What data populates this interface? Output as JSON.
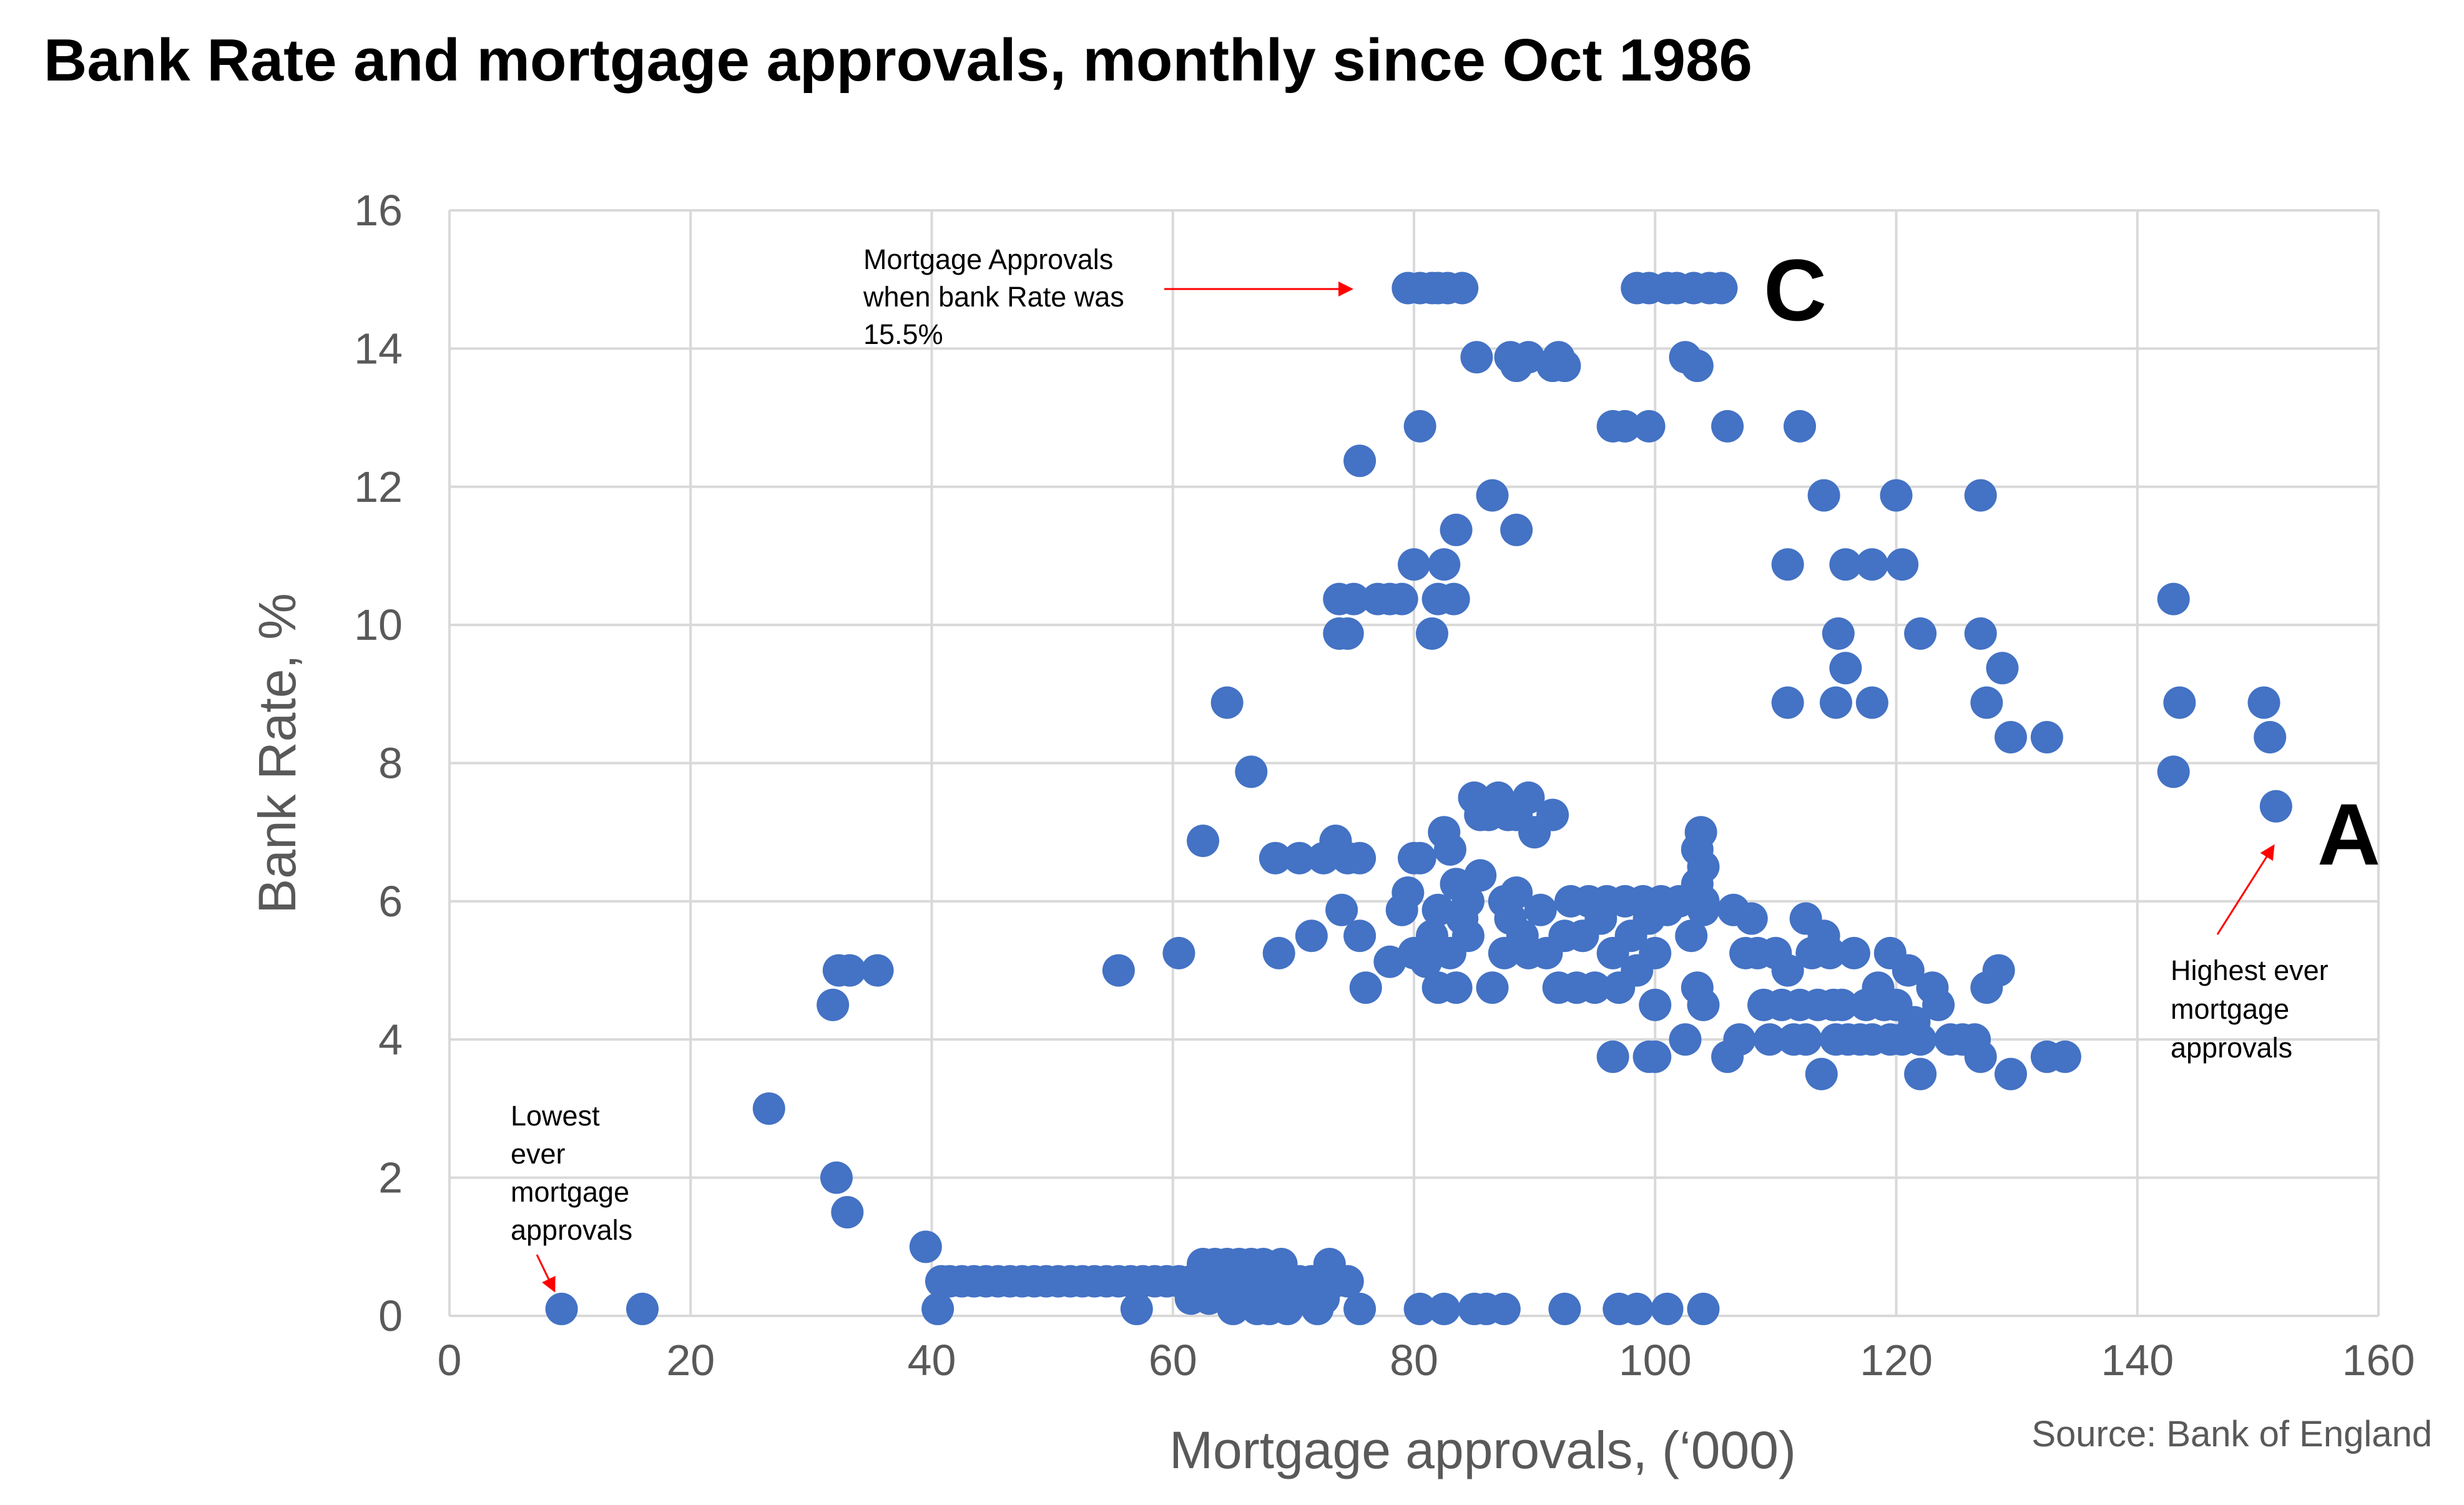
{
  "chart_data": {
    "type": "scatter",
    "title": "Bank Rate and mortgage approvals, monthly since Oct 1986",
    "xlabel": "Mortgage approvals, (‘000)",
    "ylabel": "Bank Rate, %",
    "xlim": [
      0,
      160
    ],
    "ylim": [
      0,
      16
    ],
    "x_ticks": [
      0,
      20,
      40,
      60,
      80,
      100,
      120,
      140,
      160
    ],
    "y_ticks": [
      0,
      2,
      4,
      6,
      8,
      10,
      12,
      14,
      16
    ],
    "grid": true,
    "point_color": "#4472C4",
    "points": [
      [
        9.3,
        0.1
      ],
      [
        16,
        0.1
      ],
      [
        26.5,
        3.0
      ],
      [
        31.8,
        4.5
      ],
      [
        32.3,
        5.0
      ],
      [
        33.2,
        5.0
      ],
      [
        35.5,
        5.0
      ],
      [
        32.1,
        2.0
      ],
      [
        33,
        1.5
      ],
      [
        39.5,
        1.0
      ],
      [
        40.5,
        0.1
      ],
      [
        40.8,
        0.5
      ],
      [
        41.5,
        0.5
      ],
      [
        42.5,
        0.5
      ],
      [
        43.5,
        0.5
      ],
      [
        44.5,
        0.5
      ],
      [
        45.5,
        0.5
      ],
      [
        46.5,
        0.5
      ],
      [
        47.5,
        0.5
      ],
      [
        48.5,
        0.5
      ],
      [
        49.5,
        0.5
      ],
      [
        50.5,
        0.5
      ],
      [
        51.5,
        0.5
      ],
      [
        52.5,
        0.5
      ],
      [
        53.5,
        0.5
      ],
      [
        54.5,
        0.5
      ],
      [
        55.5,
        0.5
      ],
      [
        56.5,
        0.5
      ],
      [
        57.5,
        0.5
      ],
      [
        58.5,
        0.5
      ],
      [
        59.5,
        0.5
      ],
      [
        60.5,
        0.5
      ],
      [
        61.5,
        0.5
      ],
      [
        62.5,
        0.5
      ],
      [
        63.5,
        0.5
      ],
      [
        64.5,
        0.5
      ],
      [
        65.5,
        0.5
      ],
      [
        66.5,
        0.5
      ],
      [
        67.5,
        0.5
      ],
      [
        68.5,
        0.5
      ],
      [
        69.5,
        0.5
      ],
      [
        70.5,
        0.5
      ],
      [
        71.5,
        0.5
      ],
      [
        72.5,
        0.5
      ],
      [
        73.5,
        0.5
      ],
      [
        74.5,
        0.5
      ],
      [
        62.5,
        0.75
      ],
      [
        63.5,
        0.75
      ],
      [
        64.5,
        0.75
      ],
      [
        65.5,
        0.75
      ],
      [
        66.5,
        0.75
      ],
      [
        67.5,
        0.75
      ],
      [
        69,
        0.75
      ],
      [
        73,
        0.75
      ],
      [
        61.5,
        0.25
      ],
      [
        63,
        0.25
      ],
      [
        64.5,
        0.25
      ],
      [
        66,
        0.25
      ],
      [
        68,
        0.25
      ],
      [
        70.5,
        0.25
      ],
      [
        72.5,
        0.25
      ],
      [
        57,
        0.1
      ],
      [
        65,
        0.1
      ],
      [
        67,
        0.1
      ],
      [
        68,
        0.1
      ],
      [
        69.5,
        0.1
      ],
      [
        72,
        0.1
      ],
      [
        75.5,
        0.1
      ],
      [
        80.5,
        0.1
      ],
      [
        82.5,
        0.1
      ],
      [
        85,
        0.1
      ],
      [
        86,
        0.1
      ],
      [
        87.5,
        0.1
      ],
      [
        92.5,
        0.1
      ],
      [
        97,
        0.1
      ],
      [
        98.5,
        0.1
      ],
      [
        101,
        0.1
      ],
      [
        104,
        0.1
      ],
      [
        55.5,
        5.0
      ],
      [
        60.5,
        5.25
      ],
      [
        62.5,
        6.875
      ],
      [
        64.5,
        8.875
      ],
      [
        66.5,
        7.875
      ],
      [
        68.5,
        6.625
      ],
      [
        70.5,
        6.625
      ],
      [
        68.8,
        5.25
      ],
      [
        71.5,
        5.5
      ],
      [
        72.5,
        6.625
      ],
      [
        73.5,
        6.875
      ],
      [
        74.5,
        6.625
      ],
      [
        75.5,
        6.625
      ],
      [
        74,
        5.875
      ],
      [
        75.5,
        5.5
      ],
      [
        76,
        4.75
      ],
      [
        75.5,
        12.375
      ],
      [
        73.8,
        10.375
      ],
      [
        75,
        10.375
      ],
      [
        77,
        10.375
      ],
      [
        78,
        10.375
      ],
      [
        79,
        10.375
      ],
      [
        73.8,
        9.875
      ],
      [
        74.5,
        9.875
      ],
      [
        80,
        10.875
      ],
      [
        80.5,
        12.875
      ],
      [
        79.5,
        14.875
      ],
      [
        80.5,
        14.875
      ],
      [
        81.5,
        14.875
      ],
      [
        82,
        14.875
      ],
      [
        82.8,
        14.875
      ],
      [
        84,
        14.875
      ],
      [
        81.5,
        9.875
      ],
      [
        82,
        10.375
      ],
      [
        82.5,
        10.875
      ],
      [
        83.3,
        10.375
      ],
      [
        83.5,
        11.375
      ],
      [
        85.2,
        13.875
      ],
      [
        86.5,
        11.875
      ],
      [
        88.5,
        11.375
      ],
      [
        88,
        13.875
      ],
      [
        88.5,
        13.75
      ],
      [
        89.5,
        13.875
      ],
      [
        91.5,
        13.75
      ],
      [
        92,
        13.875
      ],
      [
        92.5,
        13.75
      ],
      [
        96.5,
        12.875
      ],
      [
        97.5,
        12.875
      ],
      [
        99.5,
        12.875
      ],
      [
        106,
        12.875
      ],
      [
        112,
        12.875
      ],
      [
        98.5,
        14.875
      ],
      [
        99.5,
        14.875
      ],
      [
        101,
        14.875
      ],
      [
        101.8,
        14.875
      ],
      [
        103.2,
        14.875
      ],
      [
        104.5,
        14.875
      ],
      [
        105.5,
        14.875
      ],
      [
        102.5,
        13.875
      ],
      [
        103.5,
        13.75
      ],
      [
        78,
        5.125
      ],
      [
        79,
        5.875
      ],
      [
        79.5,
        6.125
      ],
      [
        80,
        6.625
      ],
      [
        80.5,
        6.625
      ],
      [
        80,
        5.25
      ],
      [
        81,
        5.125
      ],
      [
        81.5,
        5.5
      ],
      [
        82,
        5.875
      ],
      [
        82,
        4.75
      ],
      [
        82.5,
        7.0
      ],
      [
        83,
        6.75
      ],
      [
        83,
        5.25
      ],
      [
        83.5,
        4.75
      ],
      [
        83.5,
        6.25
      ],
      [
        84,
        5.75
      ],
      [
        84.5,
        6.0
      ],
      [
        84.5,
        5.5
      ],
      [
        85,
        7.5
      ],
      [
        85.5,
        7.25
      ],
      [
        85.5,
        6.375
      ],
      [
        86.2,
        7.25
      ],
      [
        86.5,
        4.75
      ],
      [
        87,
        7.5
      ],
      [
        87.5,
        5.25
      ],
      [
        87.5,
        6.0
      ],
      [
        87.8,
        7.25
      ],
      [
        88,
        5.75
      ],
      [
        88.5,
        6.125
      ],
      [
        88.5,
        7.25
      ],
      [
        89,
        5.5
      ],
      [
        89.5,
        7.5
      ],
      [
        89.5,
        5.25
      ],
      [
        90,
        7.0
      ],
      [
        90.5,
        5.875
      ],
      [
        91,
        5.25
      ],
      [
        91.5,
        7.25
      ],
      [
        92,
        4.75
      ],
      [
        92.5,
        5.5
      ],
      [
        93,
        6.0
      ],
      [
        93.5,
        4.75
      ],
      [
        94,
        5.5
      ],
      [
        94.5,
        6.0
      ],
      [
        95,
        4.75
      ],
      [
        95.5,
        5.75
      ],
      [
        96,
        6.0
      ],
      [
        96.5,
        5.25
      ],
      [
        97,
        4.75
      ],
      [
        97.5,
        6.0
      ],
      [
        98,
        5.5
      ],
      [
        98.5,
        5.0
      ],
      [
        99,
        6.0
      ],
      [
        99.5,
        5.75
      ],
      [
        100,
        5.25
      ],
      [
        100.5,
        6.0
      ],
      [
        101,
        5.875
      ],
      [
        96.5,
        3.75
      ],
      [
        99.5,
        3.75
      ],
      [
        100,
        3.75
      ],
      [
        100,
        4.5
      ],
      [
        102.5,
        4.0
      ],
      [
        102,
        6.0
      ],
      [
        103,
        5.5
      ],
      [
        103.5,
        6.25
      ],
      [
        104,
        6.5
      ],
      [
        104,
        5.875
      ],
      [
        103.5,
        6.75
      ],
      [
        103.5,
        4.75
      ],
      [
        104,
        4.5
      ],
      [
        103.8,
        7.0
      ],
      [
        104,
        6.0
      ],
      [
        106,
        3.75
      ],
      [
        106.5,
        5.875
      ],
      [
        107,
        4.0
      ],
      [
        107.5,
        5.25
      ],
      [
        108,
        5.75
      ],
      [
        108.5,
        5.25
      ],
      [
        109,
        4.5
      ],
      [
        109.5,
        4.0
      ],
      [
        110,
        5.25
      ],
      [
        110.5,
        4.5
      ],
      [
        111,
        5.0
      ],
      [
        111.5,
        4.0
      ],
      [
        112,
        4.5
      ],
      [
        112.5,
        5.75
      ],
      [
        112.5,
        4.0
      ],
      [
        113,
        5.25
      ],
      [
        113.5,
        4.5
      ],
      [
        113.8,
        3.5
      ],
      [
        114,
        5.5
      ],
      [
        114.5,
        5.25
      ],
      [
        114.8,
        4.5
      ],
      [
        115,
        4.0
      ],
      [
        115.5,
        4.5
      ],
      [
        116,
        4.0
      ],
      [
        116.5,
        5.25
      ],
      [
        117,
        4.0
      ],
      [
        117.5,
        4.5
      ],
      [
        118,
        4.0
      ],
      [
        118.5,
        4.75
      ],
      [
        119,
        4.5
      ],
      [
        119.5,
        5.25
      ],
      [
        119.5,
        4.0
      ],
      [
        120,
        4.5
      ],
      [
        120.5,
        4.0
      ],
      [
        121,
        5.0
      ],
      [
        121.5,
        4.25
      ],
      [
        122,
        4.0
      ],
      [
        122,
        3.5
      ],
      [
        123,
        4.75
      ],
      [
        123.5,
        4.5
      ],
      [
        124.5,
        4.0
      ],
      [
        125.5,
        4.0
      ],
      [
        126.5,
        4.0
      ],
      [
        127,
        3.75
      ],
      [
        127.5,
        4.75
      ],
      [
        128.5,
        5.0
      ],
      [
        129.5,
        3.5
      ],
      [
        132.5,
        3.75
      ],
      [
        134,
        3.75
      ],
      [
        111,
        8.875
      ],
      [
        111,
        10.875
      ],
      [
        114,
        11.875
      ],
      [
        115,
        8.875
      ],
      [
        115.2,
        9.875
      ],
      [
        115.8,
        10.875
      ],
      [
        115.8,
        9.375
      ],
      [
        118,
        10.875
      ],
      [
        118,
        8.875
      ],
      [
        120,
        11.875
      ],
      [
        120.5,
        10.875
      ],
      [
        122,
        9.875
      ],
      [
        127,
        11.875
      ],
      [
        127,
        9.875
      ],
      [
        127.5,
        8.875
      ],
      [
        128.8,
        9.375
      ],
      [
        129.5,
        8.375
      ],
      [
        132.5,
        8.375
      ],
      [
        143,
        10.375
      ],
      [
        143.5,
        8.875
      ],
      [
        143,
        7.875
      ],
      [
        150.5,
        8.875
      ],
      [
        151,
        8.375
      ],
      [
        151.5,
        7.375
      ]
    ],
    "annotations": [
      {
        "label": "C",
        "text": "Mortgage Approvals when bank Rate was 15.5%"
      },
      {
        "label": "A",
        "text": "Highest ever mortgage approvals"
      },
      {
        "label": "",
        "text": "Lowest ever mortgage approvals"
      }
    ]
  },
  "annotations": {
    "top_lines": [
      "Mortgage Approvals",
      "when bank Rate was",
      "15.5%"
    ],
    "top_letter": "C",
    "right_lines": [
      "Highest ever",
      "mortgage",
      "approvals"
    ],
    "right_letter": "A",
    "left_lines": [
      "Lowest",
      "ever",
      "mortgage",
      "approvals"
    ],
    "arrow_color": "#FF0000"
  },
  "source": "Source: Bank of England",
  "colors": {
    "point": "#4472C4",
    "grid": "#D9D9D9",
    "axis_text": "#595959"
  }
}
